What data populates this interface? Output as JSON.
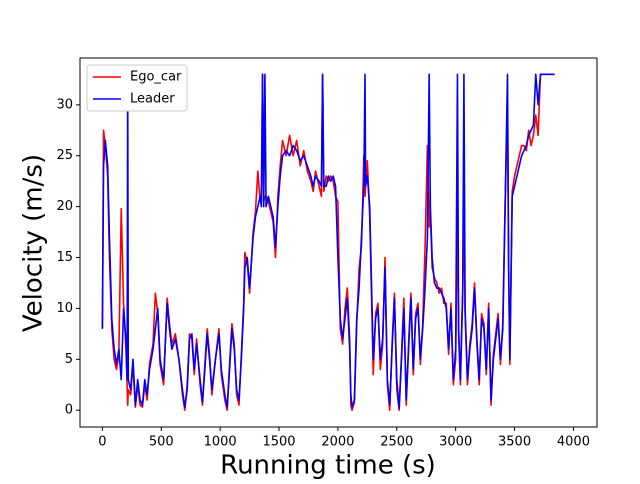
{
  "chart_data": {
    "type": "line",
    "xlabel": "Running time (s)",
    "ylabel": "Velocity (m/s)",
    "legend": "upper left",
    "xlim": [
      -190,
      4200
    ],
    "ylim": [
      -1.65,
      34.6
    ],
    "xticks": [
      0,
      500,
      1000,
      1500,
      2000,
      2500,
      3000,
      3500,
      4000
    ],
    "yticks": [
      0,
      5,
      10,
      15,
      20,
      25,
      30
    ],
    "x": [
      0,
      10,
      25,
      45,
      60,
      80,
      100,
      120,
      140,
      160,
      180,
      200,
      210,
      215,
      220,
      240,
      260,
      280,
      300,
      320,
      340,
      360,
      380,
      400,
      430,
      450,
      470,
      490,
      520,
      550,
      570,
      590,
      620,
      650,
      680,
      700,
      720,
      740,
      760,
      780,
      800,
      830,
      850,
      870,
      890,
      910,
      930,
      960,
      990,
      1010,
      1040,
      1060,
      1080,
      1100,
      1120,
      1140,
      1160,
      1180,
      1200,
      1210,
      1230,
      1250,
      1280,
      1300,
      1320,
      1340,
      1350,
      1360,
      1370,
      1380,
      1390,
      1410,
      1430,
      1450,
      1470,
      1490,
      1510,
      1530,
      1560,
      1590,
      1620,
      1650,
      1680,
      1710,
      1740,
      1770,
      1790,
      1810,
      1840,
      1860,
      1870,
      1880,
      1900,
      1920,
      1940,
      1960,
      1980,
      2000,
      2020,
      2040,
      2060,
      2080,
      2100,
      2110,
      2120,
      2140,
      2160,
      2180,
      2200,
      2220,
      2230,
      2235,
      2250,
      2270,
      2290,
      2300,
      2320,
      2340,
      2360,
      2380,
      2400,
      2420,
      2440,
      2460,
      2480,
      2500,
      2520,
      2540,
      2560,
      2580,
      2600,
      2620,
      2640,
      2660,
      2680,
      2700,
      2720,
      2740,
      2760,
      2775,
      2785,
      2800,
      2820,
      2840,
      2860,
      2880,
      2900,
      2920,
      2940,
      2960,
      2980,
      3000,
      3015,
      3025,
      3040,
      3060,
      3070,
      3080,
      3100,
      3120,
      3140,
      3160,
      3180,
      3200,
      3220,
      3240,
      3260,
      3280,
      3300,
      3320,
      3340,
      3360,
      3380,
      3400,
      3420,
      3440,
      3450,
      3460,
      3480,
      3500,
      3520,
      3540,
      3560,
      3580,
      3600,
      3620,
      3640,
      3660,
      3680,
      3700,
      3720,
      3760,
      3840
    ],
    "series": [
      {
        "name": "Ego_car",
        "color": "#ff0000",
        "values": [
          8,
          27.5,
          26,
          23,
          15,
          8,
          5,
          4,
          5.5,
          19.8,
          10.5,
          6,
          2.5,
          0.5,
          2,
          1.5,
          4.5,
          0.3,
          2.5,
          0.5,
          0.3,
          2.5,
          1,
          4.5,
          6.5,
          11.5,
          9.5,
          4.5,
          2.5,
          11,
          8.5,
          6.5,
          7.5,
          5,
          1.5,
          0,
          2.5,
          7.5,
          7,
          3.5,
          7,
          2.5,
          0.5,
          4.5,
          8,
          5.5,
          1.5,
          5,
          8,
          3.5,
          1,
          0,
          4.5,
          8.5,
          6.5,
          1.5,
          0.5,
          5.5,
          10.5,
          15.5,
          14.5,
          11.5,
          17.5,
          19.5,
          23.5,
          20.5,
          21,
          33,
          20.5,
          21,
          21,
          20.5,
          19.5,
          18.5,
          15,
          21,
          24,
          26.5,
          25,
          27,
          25,
          26.5,
          24,
          25.5,
          23.5,
          22.5,
          21.5,
          23.5,
          22,
          21,
          33,
          21.5,
          23,
          22.5,
          23,
          22.5,
          21,
          20.5,
          8,
          6.5,
          10,
          12,
          7,
          0.5,
          0,
          0.8,
          8.5,
          14,
          16,
          25,
          21,
          22,
          24.5,
          19,
          9,
          3.5,
          9.5,
          10.5,
          4,
          6.5,
          15,
          2.5,
          0,
          6.5,
          11.5,
          2,
          0,
          5.5,
          11,
          0.5,
          6.5,
          11.5,
          3.5,
          9.5,
          10.5,
          4.5,
          8.5,
          16,
          26,
          18,
          19.5,
          14,
          13,
          12.5,
          11.5,
          12,
          10.5,
          10.5,
          5.5,
          10.5,
          2.5,
          5,
          20,
          7.5,
          2.5,
          11.5,
          21,
          9.5,
          2.5,
          6.5,
          8.5,
          12.5,
          6.5,
          2.5,
          9.5,
          8.5,
          3.5,
          10.5,
          0.5,
          5.5,
          7.5,
          9.5,
          4.5,
          8.5,
          20.5,
          30,
          13,
          4.5,
          21.5,
          23,
          24,
          25,
          26,
          26,
          25.5,
          27.5,
          26,
          27,
          29,
          27,
          33,
          33,
          33
        ]
      },
      {
        "name": "Leader",
        "color": "#0000ff",
        "values": [
          8,
          24,
          26.5,
          24,
          17,
          9,
          6,
          4.5,
          6,
          3,
          10,
          7,
          3,
          33,
          3,
          2,
          5,
          0.5,
          3,
          1,
          0.5,
          3,
          1.5,
          4,
          6,
          8,
          10,
          5,
          3,
          10.5,
          8,
          6,
          7,
          5,
          2,
          0.3,
          2,
          7,
          7.5,
          4,
          6.5,
          3,
          0.8,
          4,
          7.5,
          5,
          2,
          5,
          7.5,
          4,
          1.5,
          0.3,
          4,
          8,
          6,
          2,
          1,
          5,
          10,
          14,
          15,
          12,
          17,
          19,
          20,
          21,
          20,
          33,
          20,
          33,
          20,
          21,
          20,
          19,
          16,
          20,
          23,
          25,
          25.5,
          25,
          26,
          25.5,
          24.5,
          25,
          24,
          23,
          22,
          23,
          22.5,
          22,
          33,
          22,
          22,
          23,
          22.5,
          23,
          22,
          15,
          9,
          7,
          9,
          11,
          6,
          1.5,
          0.3,
          1,
          9,
          12,
          17,
          22,
          33,
          22,
          23,
          20,
          10,
          5,
          9,
          10,
          5,
          7,
          14,
          3,
          0.5,
          6,
          11,
          3,
          0.2,
          5,
          10,
          1,
          6,
          11,
          4,
          9,
          10,
          5,
          8,
          12,
          17,
          33,
          20,
          15,
          12.5,
          12,
          12,
          11.5,
          11,
          10,
          6,
          10,
          3,
          6,
          33,
          8,
          3,
          12,
          33,
          10,
          3,
          6,
          8,
          12,
          7,
          3,
          9,
          8,
          4,
          10,
          1,
          5,
          7,
          9,
          5,
          8,
          20,
          33,
          14,
          5,
          21,
          22,
          23,
          24,
          25,
          25.5,
          26,
          27,
          27.5,
          28,
          33,
          30,
          33,
          33,
          33
        ]
      }
    ]
  }
}
